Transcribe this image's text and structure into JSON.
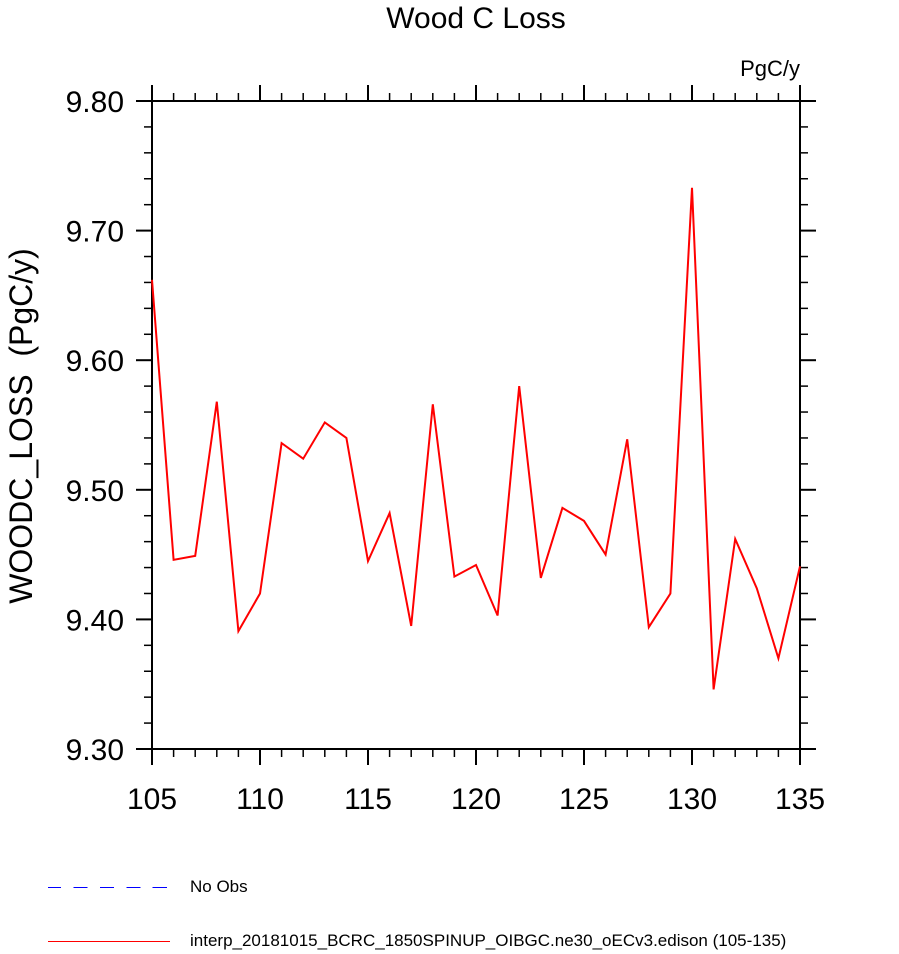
{
  "chart_data": {
    "type": "line",
    "title": "Wood C Loss",
    "units_label": "PgC/y",
    "ylabel": "WOODC_LOSS  (PgC/y)",
    "xlabel": "",
    "xlim": [
      105,
      135
    ],
    "ylim": [
      9.3,
      9.8
    ],
    "x_ticks": [
      105,
      110,
      115,
      120,
      125,
      130,
      135
    ],
    "y_ticks": [
      9.3,
      9.4,
      9.5,
      9.6,
      9.7,
      9.8
    ],
    "y_tick_labels": [
      "9.30",
      "9.40",
      "9.50",
      "9.60",
      "9.70",
      "9.80"
    ],
    "grid": false,
    "legend_position": "bottom",
    "series": [
      {
        "name": "interp_20181015_BCRC_1850SPINUP_OIBGC.ne30_oECv3.edison (105-135)",
        "color": "#ff0000",
        "x": [
          105,
          106,
          107,
          108,
          109,
          110,
          111,
          112,
          113,
          114,
          115,
          116,
          117,
          118,
          119,
          120,
          121,
          122,
          123,
          124,
          125,
          126,
          127,
          128,
          129,
          130,
          131,
          132,
          133,
          134,
          135
        ],
        "values": [
          9.662,
          9.446,
          9.449,
          9.568,
          9.391,
          9.42,
          9.536,
          9.524,
          9.552,
          9.54,
          9.445,
          9.482,
          9.395,
          9.566,
          9.433,
          9.442,
          9.403,
          9.58,
          9.432,
          9.486,
          9.476,
          9.45,
          9.539,
          9.394,
          9.42,
          9.733,
          9.346,
          9.462,
          9.424,
          9.37,
          9.441
        ]
      }
    ],
    "legend": [
      {
        "label": "No Obs",
        "color": "#0000ff",
        "style": "dashed"
      },
      {
        "label": "interp_20181015_BCRC_1850SPINUP_OIBGC.ne30_oECv3.edison (105-135)",
        "color": "#ff0000",
        "style": "solid"
      }
    ]
  }
}
